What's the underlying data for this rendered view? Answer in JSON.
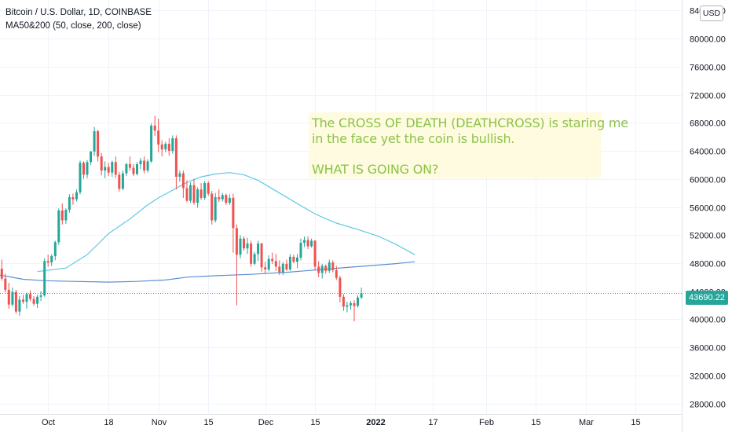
{
  "header": {
    "symbol_title": "Bitcoin / U.S. Dollar, 1D, COINBASE",
    "indicator_label": "MA50&200 (50, close, 200, close)"
  },
  "note": {
    "line1": "The CROSS OF DEATH (DEATHCROSS) is staring me",
    "line2": "in the face yet the coin is bullish.",
    "line3": "WHAT IS GOING ON?"
  },
  "toolbar": {
    "currency_label": "USD"
  },
  "colors": {
    "up": "#26a69a",
    "down": "#ef5350",
    "ma50": "#5ec8e5",
    "ma200": "#5b8fd4",
    "note_text": "#8bc34a",
    "last_price": "#26a69a"
  },
  "chart_data": {
    "type": "candlestick",
    "title": "Bitcoin / U.S. Dollar, 1D, COINBASE",
    "y_ticks": [
      "28000.00",
      "32000.00",
      "36000.00",
      "40000.00",
      "44000.00",
      "48000.00",
      "52000.00",
      "56000.00",
      "60000.00",
      "64000.00",
      "68000.00",
      "72000.00",
      "76000.00",
      "80000.00",
      "84000.00"
    ],
    "ylim": [
      26500,
      85500
    ],
    "x_tick_labels": [
      {
        "label": "Oct",
        "day": 35
      },
      {
        "label": "18",
        "day": 52
      },
      {
        "label": "Nov",
        "day": 66
      },
      {
        "label": "15",
        "day": 80
      },
      {
        "label": "Dec",
        "day": 96
      },
      {
        "label": "15",
        "day": 110
      },
      {
        "label": "2022",
        "day": 127
      },
      {
        "label": "17",
        "day": 143
      },
      {
        "label": "Feb",
        "day": 158
      },
      {
        "label": "15",
        "day": 172
      },
      {
        "label": "Mar",
        "day": 186
      },
      {
        "label": "15",
        "day": 200
      }
    ],
    "xlim": [
      21.5,
      213
    ],
    "last_price": 43690.22,
    "last_price_label": "43690.22",
    "candles_start_day": 22,
    "candles": [
      [
        47200,
        48500,
        45500,
        45800
      ],
      [
        45800,
        46500,
        43800,
        44200
      ],
      [
        44200,
        45200,
        41500,
        42100
      ],
      [
        42100,
        44500,
        41800,
        43900
      ],
      [
        43900,
        44200,
        40800,
        41100
      ],
      [
        41100,
        43300,
        40500,
        42800
      ],
      [
        42800,
        43500,
        42200,
        42500
      ],
      [
        42500,
        43800,
        41500,
        43600
      ],
      [
        43600,
        44100,
        42600,
        42900
      ],
      [
        42900,
        43300,
        41900,
        42200
      ],
      [
        42200,
        43500,
        41600,
        43200
      ],
      [
        43200,
        44000,
        42600,
        43400
      ],
      [
        43400,
        48700,
        43200,
        48300
      ],
      [
        48300,
        49200,
        47500,
        48100
      ],
      [
        48100,
        49300,
        47600,
        49000
      ],
      [
        49000,
        51200,
        48400,
        51000
      ],
      [
        51000,
        55800,
        50600,
        55500
      ],
      [
        55500,
        56500,
        53500,
        54100
      ],
      [
        54100,
        55800,
        53600,
        55600
      ],
      [
        55600,
        57800,
        55200,
        57400
      ],
      [
        57400,
        57900,
        56300,
        57100
      ],
      [
        57100,
        58500,
        56800,
        58100
      ],
      [
        58100,
        62600,
        57800,
        62300
      ],
      [
        62300,
        62500,
        60000,
        60600
      ],
      [
        60600,
        62700,
        60100,
        62400
      ],
      [
        62400,
        64000,
        62000,
        63900
      ],
      [
        63900,
        67400,
        63300,
        66800
      ],
      [
        66800,
        67000,
        62500,
        63200
      ],
      [
        63200,
        63700,
        60500,
        61200
      ],
      [
        61200,
        62500,
        60100,
        61700
      ],
      [
        61700,
        62300,
        60400,
        60900
      ],
      [
        60900,
        62600,
        60300,
        62400
      ],
      [
        62400,
        63200,
        60100,
        60600
      ],
      [
        60600,
        61000,
        58200,
        58600
      ],
      [
        58600,
        61200,
        58400,
        60800
      ],
      [
        60800,
        62300,
        60400,
        62100
      ],
      [
        62100,
        63200,
        61200,
        61600
      ],
      [
        61600,
        62100,
        60400,
        60700
      ],
      [
        60700,
        62400,
        60500,
        62100
      ],
      [
        62100,
        63000,
        61400,
        62600
      ],
      [
        62600,
        63200,
        60800,
        61200
      ],
      [
        61200,
        62800,
        60900,
        62500
      ],
      [
        62500,
        67900,
        62300,
        67600
      ],
      [
        67600,
        69000,
        66100,
        66900
      ],
      [
        66900,
        68600,
        63800,
        64900
      ],
      [
        64900,
        65500,
        63200,
        64200
      ],
      [
        64200,
        65300,
        63800,
        65000
      ],
      [
        65000,
        65800,
        63300,
        64000
      ],
      [
        64000,
        66200,
        63600,
        65800
      ],
      [
        65800,
        66200,
        58500,
        60300
      ],
      [
        60300,
        61200,
        59600,
        60800
      ],
      [
        60800,
        61200,
        57300,
        58700
      ],
      [
        58700,
        59800,
        56700,
        56900
      ],
      [
        56900,
        59500,
        56600,
        59100
      ],
      [
        59100,
        60000,
        56300,
        56600
      ],
      [
        56600,
        58800,
        55900,
        58500
      ],
      [
        58500,
        59400,
        57000,
        57300
      ],
      [
        57300,
        59700,
        57000,
        59400
      ],
      [
        59400,
        59700,
        57600,
        57900
      ],
      [
        57900,
        58300,
        53500,
        54100
      ],
      [
        54100,
        58000,
        53800,
        57400
      ],
      [
        57400,
        58500,
        56700,
        57100
      ],
      [
        57100,
        58000,
        56800,
        57700
      ],
      [
        57700,
        57900,
        56300,
        56600
      ],
      [
        56600,
        57800,
        56300,
        57300
      ],
      [
        57300,
        57900,
        49500,
        53000
      ],
      [
        53000,
        53500,
        42000,
        49200
      ],
      [
        49200,
        52000,
        48700,
        51500
      ],
      [
        51500,
        51800,
        49800,
        50100
      ],
      [
        50100,
        51600,
        49300,
        50800
      ],
      [
        50800,
        51200,
        47500,
        47900
      ],
      [
        47900,
        49600,
        47700,
        49300
      ],
      [
        49300,
        51200,
        48300,
        50800
      ],
      [
        50800,
        50900,
        46800,
        47400
      ],
      [
        47400,
        48200,
        46500,
        47100
      ],
      [
        47100,
        49100,
        46800,
        48600
      ],
      [
        48600,
        49500,
        47900,
        48300
      ],
      [
        48300,
        49300,
        46900,
        47500
      ],
      [
        47500,
        48400,
        46300,
        46700
      ],
      [
        46700,
        48200,
        46300,
        47900
      ],
      [
        47900,
        48500,
        46900,
        47100
      ],
      [
        47100,
        49300,
        46900,
        48900
      ],
      [
        48900,
        49200,
        48000,
        48200
      ],
      [
        48200,
        49300,
        47300,
        48800
      ],
      [
        48800,
        51500,
        48400,
        50900
      ],
      [
        50900,
        51800,
        50300,
        51300
      ],
      [
        51300,
        51800,
        50000,
        50400
      ],
      [
        50400,
        51500,
        50200,
        51200
      ],
      [
        51200,
        51300,
        47000,
        47500
      ],
      [
        47500,
        48300,
        46000,
        46600
      ],
      [
        46600,
        47900,
        45800,
        47600
      ],
      [
        47600,
        47800,
        46500,
        46900
      ],
      [
        46900,
        48500,
        46600,
        48100
      ],
      [
        48100,
        48400,
        46700,
        47000
      ],
      [
        47000,
        47600,
        45600,
        45900
      ],
      [
        45900,
        46200,
        42400,
        43200
      ],
      [
        43200,
        43600,
        41200,
        41800
      ],
      [
        41800,
        42500,
        41000,
        42000
      ],
      [
        42000,
        42600,
        41400,
        42300
      ],
      [
        42300,
        42700,
        39700,
        41900
      ],
      [
        41900,
        43400,
        41700,
        43100
      ],
      [
        43100,
        44500,
        42900,
        43690
      ]
    ],
    "series": [
      {
        "name": "MA50",
        "points": [
          [
            32,
            46800
          ],
          [
            40,
            47300
          ],
          [
            46,
            49200
          ],
          [
            52,
            52200
          ],
          [
            58,
            54300
          ],
          [
            63,
            56300
          ],
          [
            66,
            57300
          ],
          [
            70,
            58400
          ],
          [
            74,
            59500
          ],
          [
            78,
            60300
          ],
          [
            82,
            60700
          ],
          [
            86,
            60900
          ],
          [
            90,
            60600
          ],
          [
            94,
            59800
          ],
          [
            98,
            58600
          ],
          [
            104,
            56800
          ],
          [
            110,
            55000
          ],
          [
            116,
            53700
          ],
          [
            122,
            52800
          ],
          [
            128,
            51800
          ],
          [
            133,
            50600
          ],
          [
            138,
            49200
          ]
        ]
      },
      {
        "name": "MA200",
        "points": [
          [
            21.5,
            46300
          ],
          [
            28,
            45700
          ],
          [
            34,
            45500
          ],
          [
            42,
            45400
          ],
          [
            52,
            45300
          ],
          [
            60,
            45400
          ],
          [
            68,
            45600
          ],
          [
            74,
            46000
          ],
          [
            82,
            46200
          ],
          [
            92,
            46400
          ],
          [
            102,
            46700
          ],
          [
            112,
            47100
          ],
          [
            122,
            47500
          ],
          [
            132,
            47900
          ],
          [
            138,
            48200
          ]
        ]
      }
    ]
  }
}
